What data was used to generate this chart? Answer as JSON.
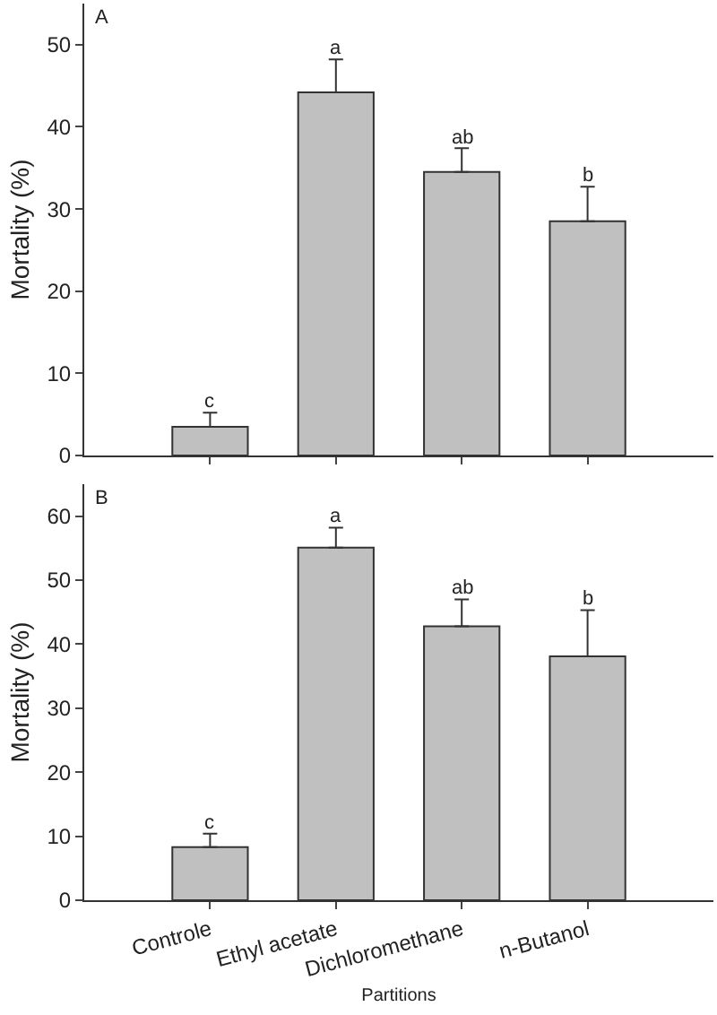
{
  "chart_data": [
    {
      "type": "bar",
      "ylabel": "Mortality (%)",
      "categories": [
        "Controle",
        "Ethyl acetate",
        "Dichloromethane",
        "n-Butanol"
      ],
      "values": [
        3.5,
        44.2,
        34.5,
        28.5
      ],
      "errors": [
        [
          3.5,
          5.2
        ],
        [
          44.2,
          48.2
        ],
        [
          34.5,
          37.4
        ],
        [
          28.5,
          32.7
        ]
      ],
      "color": "#c0c0c0",
      "ylim": [
        0,
        55
      ],
      "yticks": [
        0,
        10,
        20,
        30,
        40,
        50
      ],
      "grid": false,
      "tick_labels": "y",
      "annotations": [
        "A",
        {
          "text": "c",
          "x": "Controle",
          "y": 5.2
        },
        {
          "text": "a",
          "x": "Ethyl acetate",
          "y": 48.2
        },
        {
          "text": "ab",
          "x": "Dichloromethane",
          "y": 37.4
        },
        {
          "text": "b",
          "x": "n-Butanol",
          "y": 32.7
        }
      ]
    },
    {
      "type": "bar",
      "xlabel": "Partitions",
      "ylabel": "Mortality (%)",
      "categories": [
        "Controle",
        "Ethyl acetate",
        "Dichloromethane",
        "n-Butanol"
      ],
      "values": [
        8.3,
        55.1,
        42.8,
        38.1
      ],
      "errors": [
        [
          8.3,
          10.4
        ],
        [
          55.1,
          58.2
        ],
        [
          42.8,
          47.0
        ],
        [
          38.1,
          45.3
        ]
      ],
      "color": "#c0c0c0",
      "ylim": [
        0,
        65
      ],
      "yticks": [
        0,
        10,
        20,
        30,
        40,
        50,
        60
      ],
      "grid": false,
      "annotations": [
        "B",
        {
          "text": "c",
          "x": "Controle",
          "y": 10.4
        },
        {
          "text": "a",
          "x": "Ethyl acetate",
          "y": 58.2
        },
        {
          "text": "ab",
          "x": "Dichloromethane",
          "y": 47.0
        },
        {
          "text": "b",
          "x": "n-Butanol",
          "y": 45.3
        }
      ]
    }
  ]
}
